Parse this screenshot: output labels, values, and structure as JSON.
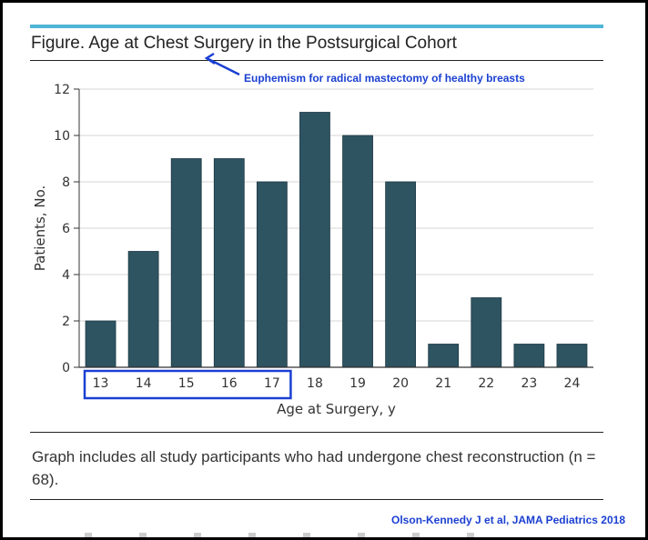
{
  "figure": {
    "title": "Figure. Age at Chest Surgery in the Postsurgical Cohort",
    "annotation": "Euphemism for radical mastectomy of healthy breasts",
    "caption": "Graph includes all study participants who had undergone chest reconstruction (n = 68).",
    "citation": "Olson-Kennedy J et al, JAMA Pediatrics 2018"
  },
  "colors": {
    "bar": "#2e5361",
    "accent_bar": "#4fb6d6",
    "highlight": "#1a3fd1",
    "background_outer": "#000000"
  },
  "chart_data": {
    "type": "bar",
    "categories": [
      "13",
      "14",
      "15",
      "16",
      "17",
      "18",
      "19",
      "20",
      "21",
      "22",
      "23",
      "24"
    ],
    "values": [
      2,
      5,
      9,
      9,
      8,
      11,
      10,
      8,
      1,
      3,
      1,
      1
    ],
    "xlabel": "Age at Surgery, y",
    "ylabel": "Patients, No.",
    "ylim": [
      0,
      12
    ],
    "yticks": [
      0,
      2,
      4,
      6,
      8,
      10,
      12
    ],
    "grid": true,
    "highlighted_categories": [
      "13",
      "14",
      "15",
      "16",
      "17"
    ]
  }
}
